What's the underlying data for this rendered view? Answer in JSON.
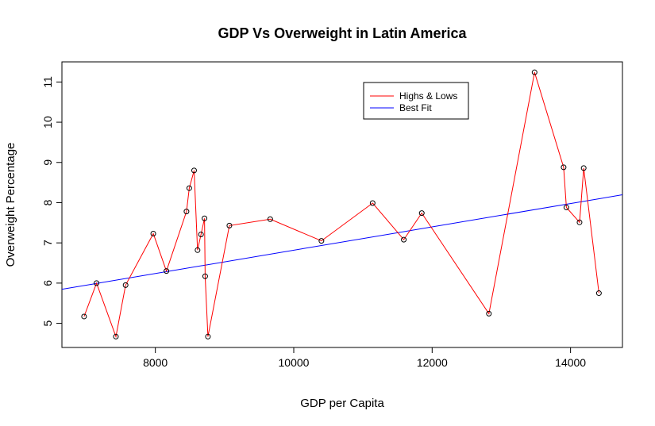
{
  "chart_data": {
    "type": "line",
    "title": "GDP Vs Overweight in Latin America",
    "xlabel": "GDP per Capita",
    "ylabel": "Overweight Percentage",
    "xlim": [
      6650,
      14750
    ],
    "ylim": [
      4.4,
      11.5
    ],
    "x_ticks": [
      8000,
      10000,
      12000,
      14000
    ],
    "y_ticks": [
      5,
      6,
      7,
      8,
      9,
      10,
      11
    ],
    "legend_placement": "top-center",
    "series": [
      {
        "name": "Highs & Lows",
        "color": "#ff0000",
        "markers": "open-circle",
        "points": [
          {
            "x": 6970,
            "y": 5.17
          },
          {
            "x": 7150,
            "y": 6.0
          },
          {
            "x": 7430,
            "y": 4.67
          },
          {
            "x": 7570,
            "y": 5.95
          },
          {
            "x": 7970,
            "y": 7.23
          },
          {
            "x": 8160,
            "y": 6.3
          },
          {
            "x": 8450,
            "y": 7.78
          },
          {
            "x": 8490,
            "y": 8.36
          },
          {
            "x": 8560,
            "y": 8.8
          },
          {
            "x": 8610,
            "y": 6.82
          },
          {
            "x": 8660,
            "y": 7.21
          },
          {
            "x": 8710,
            "y": 7.61
          },
          {
            "x": 8720,
            "y": 6.17
          },
          {
            "x": 8760,
            "y": 4.67
          },
          {
            "x": 9070,
            "y": 7.43
          },
          {
            "x": 9660,
            "y": 7.59
          },
          {
            "x": 10400,
            "y": 7.05
          },
          {
            "x": 11140,
            "y": 7.99
          },
          {
            "x": 11590,
            "y": 7.08
          },
          {
            "x": 11850,
            "y": 7.74
          },
          {
            "x": 12820,
            "y": 5.24
          },
          {
            "x": 13480,
            "y": 11.24
          },
          {
            "x": 13900,
            "y": 8.88
          },
          {
            "x": 13940,
            "y": 7.88
          },
          {
            "x": 14130,
            "y": 7.51
          },
          {
            "x": 14190,
            "y": 8.86
          },
          {
            "x": 14410,
            "y": 5.75
          }
        ]
      },
      {
        "name": "Best Fit",
        "color": "#0000ff",
        "type": "line",
        "intercept": 3.918,
        "slope": 0.00029
      }
    ]
  }
}
